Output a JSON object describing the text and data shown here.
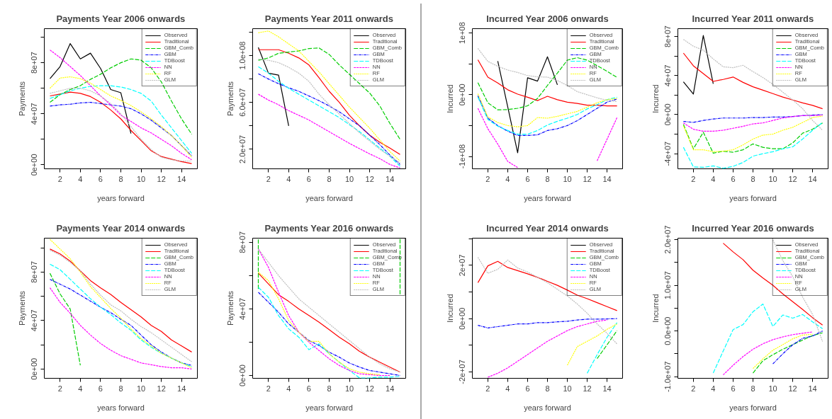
{
  "chart_data": [
    {
      "type": "line",
      "title": "Payments Year 2006 onwards",
      "xlabel": "years forward",
      "ylabel": "Payments",
      "x": [
        1,
        2,
        3,
        4,
        5,
        6,
        7,
        8,
        9,
        10,
        11,
        12,
        13,
        14,
        15
      ],
      "xlim": [
        0.44,
        15.56
      ],
      "xticks": [
        2,
        4,
        6,
        8,
        10,
        12,
        14
      ],
      "ylim": [
        -3100000.0,
        106700000.0
      ],
      "yticks": [
        {
          "value": 0,
          "label": "0e+00"
        },
        {
          "value": 20000000.0,
          "label": null
        },
        {
          "value": 40000000.0,
          "label": "4e+07"
        },
        {
          "value": 60000000.0,
          "label": null
        },
        {
          "value": 80000000.0,
          "label": "8e+07"
        },
        {
          "value": 100000000.0,
          "label": null
        }
      ],
      "legend": "top right",
      "series": [
        {
          "name": "Observed",
          "color": "#000000",
          "line_style": "solid",
          "values": [
            67500000.0,
            77000000.0,
            95000000.0,
            83000000.0,
            87500000.0,
            75500000.0,
            59000000.0,
            56500000.0,
            24500000.0,
            null,
            null,
            null,
            null,
            null,
            null
          ]
        },
        {
          "name": "Traditional",
          "color": "#ff0000",
          "line_style": "solid",
          "values": [
            54000000.0,
            55500000.0,
            57000000.0,
            56000000.0,
            53500000.0,
            49000000.0,
            43000000.0,
            36000000.0,
            27000000.0,
            19000000.0,
            11000000.0,
            6500000.0,
            4500000.0,
            2500000.0,
            1000000.0
          ]
        },
        {
          "name": "GBM_Comb",
          "color": "#00cd00",
          "line_style": "longdash",
          "values": [
            49000000.0,
            55000000.0,
            59000000.0,
            62000000.0,
            67000000.0,
            71000000.0,
            76000000.0,
            80000000.0,
            83000000.0,
            82000000.0,
            76000000.0,
            65000000.0,
            50000000.0,
            36000000.0,
            24000000.0
          ]
        },
        {
          "name": "GBM",
          "color": "#0000ff",
          "line_style": "dashdot",
          "values": [
            46000000.0,
            47000000.0,
            47500000.0,
            48500000.0,
            49000000.0,
            48000000.0,
            47000000.0,
            46000000.0,
            44000000.0,
            40000000.0,
            35000000.0,
            29000000.0,
            23000000.0,
            15000000.0,
            7000000.0
          ]
        },
        {
          "name": "TDBoost",
          "color": "#00ffff",
          "line_style": "longdash",
          "values": [
            52000000.0,
            55000000.0,
            58000000.0,
            60000000.0,
            61500000.0,
            62000000.0,
            62000000.0,
            61000000.0,
            59000000.0,
            56000000.0,
            50000000.0,
            39000000.0,
            29000000.0,
            19000000.0,
            9000000.0
          ]
        },
        {
          "name": "NN",
          "color": "#ff00ff",
          "line_style": "dashed",
          "values": [
            90000000.0,
            84000000.0,
            77000000.0,
            70000000.0,
            62000000.0,
            54000000.0,
            47000000.0,
            39000000.0,
            34000000.0,
            29000000.0,
            25000000.0,
            20000000.0,
            15000000.0,
            9000000.0,
            4000000.0
          ]
        },
        {
          "name": "RF",
          "color": "#ffff00",
          "line_style": "dotted",
          "values": [
            60000000.0,
            68000000.0,
            69000000.0,
            67500000.0,
            64000000.0,
            59000000.0,
            54000000.0,
            50500000.0,
            46500000.0,
            41500000.0,
            36000000.0,
            30000000.0,
            23000000.0,
            15000000.0,
            6000000.0
          ]
        },
        {
          "name": "GLM",
          "color": "#bebebe",
          "line_style": "dotted",
          "values": [
            56000000.0,
            58000000.0,
            60000000.0,
            60000000.0,
            58000000.0,
            54000000.0,
            48000000.0,
            40000000.0,
            30000000.0,
            20000000.0,
            12000000.0,
            6000000.0,
            4000000.0,
            3000000.0,
            3000000.0
          ]
        }
      ]
    },
    {
      "type": "line",
      "title": "Payments Year 2011 onwards",
      "xlabel": "years forward",
      "ylabel": "Payments",
      "x": [
        1,
        2,
        3,
        4,
        5,
        6,
        7,
        8,
        9,
        10,
        11,
        12,
        13,
        14,
        15
      ],
      "xlim": [
        0.44,
        15.56
      ],
      "xticks": [
        2,
        4,
        6,
        8,
        10,
        12,
        14
      ],
      "ylim": [
        3300000.0,
        123000000.0
      ],
      "yticks": [
        {
          "value": 20000000.0,
          "label": "2.0e+07"
        },
        {
          "value": 40000000.0,
          "label": null
        },
        {
          "value": 60000000.0,
          "label": "6.0e+07"
        },
        {
          "value": 80000000.0,
          "label": null
        },
        {
          "value": 100000000.0,
          "label": "1.0e+08"
        },
        {
          "value": 120000000.0,
          "label": null
        }
      ],
      "legend": "top right",
      "series": [
        {
          "name": "Observed",
          "color": "#000000",
          "line_style": "solid",
          "values": [
            107000000.0,
            85000000.0,
            83300000.0,
            40000000.0,
            null,
            null,
            null,
            null,
            null,
            null,
            null,
            null,
            null,
            null,
            null
          ]
        },
        {
          "name": "Traditional",
          "color": "#ff0000",
          "line_style": "solid",
          "values": [
            105000000.0,
            105000000.0,
            105000000.0,
            102000000.0,
            98000000.0,
            92000000.0,
            81000000.0,
            69500000.0,
            60000000.0,
            49000000.0,
            40000000.0,
            32000000.0,
            26000000.0,
            21000000.0,
            15500000.0
          ]
        },
        {
          "name": "GBM_Comb",
          "color": "#00cd00",
          "line_style": "longdash",
          "values": [
            96000000.0,
            98000000.0,
            102000000.0,
            103000000.0,
            104000000.0,
            106000000.0,
            106500000.0,
            101000000.0,
            92000000.0,
            84000000.0,
            76000000.0,
            68000000.0,
            57000000.0,
            42000000.0,
            28500000.0
          ]
        },
        {
          "name": "GBM",
          "color": "#0000ff",
          "line_style": "dashdot",
          "values": [
            84500000.0,
            80000000.0,
            76000000.0,
            72500000.0,
            69500000.0,
            65500000.0,
            61500000.0,
            57000000.0,
            52000000.0,
            46000000.0,
            40000000.0,
            32000000.0,
            24000000.0,
            15000000.0,
            7000000.0
          ]
        },
        {
          "name": "TDBoost",
          "color": "#00ffff",
          "line_style": "longdash",
          "values": [
            90500000.0,
            85000000.0,
            78000000.0,
            72000000.0,
            67000000.0,
            62000000.0,
            57000000.0,
            52000000.0,
            47000000.0,
            41000000.0,
            35000000.0,
            28000000.0,
            21000000.0,
            14000000.0,
            5500000.0
          ]
        },
        {
          "name": "NN",
          "color": "#ff00ff",
          "line_style": "dashed",
          "values": [
            67000000.0,
            62000000.0,
            58000000.0,
            53000000.0,
            49000000.0,
            45000000.0,
            40000000.0,
            35000000.0,
            30000000.0,
            25000000.0,
            20500000.0,
            16000000.0,
            12000000.0,
            7000000.0,
            4000000.0
          ]
        },
        {
          "name": "RF",
          "color": "#ffff00",
          "line_style": "dotted",
          "values": [
            119500000.0,
            121000000.0,
            116000000.0,
            110000000.0,
            104000000.0,
            95000000.0,
            86000000.0,
            76000000.0,
            66000000.0,
            56000000.0,
            47000000.0,
            38000000.0,
            28000000.0,
            18000000.0,
            10000000.0
          ]
        },
        {
          "name": "GLM",
          "color": "#bebebe",
          "line_style": "dotted",
          "values": [
            97000000.0,
            96000000.0,
            94000000.0,
            90000000.0,
            85000000.0,
            78000000.0,
            67000000.0,
            58000000.0,
            50000000.0,
            42000000.0,
            34000000.0,
            27000000.0,
            20000000.0,
            14000000.0,
            8500000.0
          ]
        }
      ]
    },
    {
      "type": "line",
      "title": "Incurred Year 2006 onwards",
      "xlabel": "years forward",
      "ylabel": "Incurred",
      "x": [
        1,
        2,
        3,
        4,
        5,
        6,
        7,
        8,
        9,
        10,
        11,
        12,
        13,
        14,
        15
      ],
      "xlim": [
        0.44,
        15.56
      ],
      "xticks": [
        2,
        4,
        6,
        8,
        10,
        12,
        14
      ],
      "ylim": [
        -120000000.0,
        107000000.0
      ],
      "yticks": [
        {
          "value": -100000000.0,
          "label": "-1e+08"
        },
        {
          "value": -50000000.0,
          "label": null
        },
        {
          "value": 0,
          "label": "0e+00"
        },
        {
          "value": 50000000.0,
          "label": null
        },
        {
          "value": 100000000.0,
          "label": "1e+08"
        }
      ],
      "legend": "top right",
      "series": [
        {
          "name": "Observed",
          "color": "#000000",
          "line_style": "solid",
          "values": [
            null,
            null,
            54500000.0,
            -19500000.0,
            -94000000.0,
            27500000.0,
            22000000.0,
            61500000.0,
            16000000.0,
            null,
            null,
            null,
            null,
            null,
            null
          ]
        },
        {
          "name": "Traditional",
          "color": "#ff0000",
          "line_style": "solid",
          "values": [
            56500000.0,
            28500000.0,
            19000000.0,
            8000000.0,
            1000000.0,
            -4000000.0,
            -9500000.0,
            -2500000.0,
            -8000000.0,
            -12000000.0,
            -14000000.0,
            -17000000.0,
            -17000000.0,
            -18000000.0,
            -18000000.0
          ]
        },
        {
          "name": "GBM_Comb",
          "color": "#00cd00",
          "line_style": "longdash",
          "values": [
            19500000.0,
            -13000000.0,
            -24500000.0,
            -24000000.0,
            -22000000.0,
            -18000000.0,
            -6000000.0,
            15000000.0,
            35000000.0,
            56000000.0,
            60000000.0,
            56000000.0,
            47000000.0,
            38000000.0,
            28000000.0
          ]
        },
        {
          "name": "GBM",
          "color": "#0000ff",
          "line_style": "dashdot",
          "values": [
            -1500000.0,
            -38000000.0,
            -50000000.0,
            -59000000.0,
            -66000000.0,
            -66000000.0,
            -65000000.0,
            -58000000.0,
            -55000000.0,
            -50000000.0,
            -42000000.0,
            -32000000.0,
            -22000000.0,
            -12000000.0,
            -7000000.0
          ]
        },
        {
          "name": "TDBoost",
          "color": "#00ffff",
          "line_style": "longdash",
          "values": [
            -4000000.0,
            -40000000.0,
            -51000000.0,
            -58000000.0,
            -64000000.0,
            -64000000.0,
            -58000000.0,
            -49000000.0,
            -43000000.0,
            -38000000.0,
            -32000000.0,
            -23000000.0,
            -16000000.0,
            -8000000.0,
            -4000000.0
          ]
        },
        {
          "name": "NN",
          "color": "#ff00ff",
          "line_style": "dashed",
          "values": [
            -22000000.0,
            -55000000.0,
            -80000000.0,
            -108000000.0,
            -118000000.0,
            null,
            null,
            null,
            null,
            null,
            null,
            null,
            -107000000.0,
            -72000000.0,
            -37000000.0
          ]
        },
        {
          "name": "RF",
          "color": "#ffff00",
          "line_style": "dotted",
          "values": [
            1500000.0,
            -36000000.0,
            -45000000.0,
            -50000000.0,
            -52000000.0,
            -50000000.0,
            -37000000.0,
            -38000000.0,
            -35000000.0,
            -31000000.0,
            -27000000.0,
            -20000000.0,
            -13000000.0,
            -8000000.0,
            -6000000.0
          ]
        },
        {
          "name": "GLM",
          "color": "#bebebe",
          "line_style": "dotted",
          "values": [
            75000000.0,
            54000000.0,
            46000000.0,
            40000000.0,
            36000000.0,
            31000000.0,
            29000000.0,
            28500000.0,
            23000000.0,
            15000000.0,
            5000000.0,
            0,
            -5000000.0,
            -9000000.0,
            -11000000.0
          ]
        }
      ]
    },
    {
      "type": "line",
      "title": "Incurred Year 2011 onwards",
      "xlabel": "years forward",
      "ylabel": "Incurred",
      "x": [
        1,
        2,
        3,
        4,
        5,
        6,
        7,
        8,
        9,
        10,
        11,
        12,
        13,
        14,
        15
      ],
      "xlim": [
        0.44,
        15.56
      ],
      "xticks": [
        2,
        4,
        6,
        8,
        10,
        12,
        14
      ],
      "ylim": [
        -55500000.0,
        88000000.0
      ],
      "yticks": [
        {
          "value": -40000000.0,
          "label": "-4e+07"
        },
        {
          "value": -20000000.0,
          "label": null
        },
        {
          "value": 0,
          "label": "0e+00"
        },
        {
          "value": 20000000.0,
          "label": null
        },
        {
          "value": 40000000.0,
          "label": "4e+07"
        },
        {
          "value": 60000000.0,
          "label": null
        },
        {
          "value": 80000000.0,
          "label": "8e+07"
        }
      ],
      "legend": "top right",
      "series": [
        {
          "name": "Observed",
          "color": "#000000",
          "line_style": "solid",
          "values": [
            33500000.0,
            21000000.0,
            81000000.0,
            31500000.0,
            null,
            null,
            null,
            null,
            null,
            null,
            null,
            null,
            null,
            null,
            null
          ]
        },
        {
          "name": "Traditional",
          "color": "#ff0000",
          "line_style": "solid",
          "values": [
            63000000.0,
            50000000.0,
            42000000.0,
            34000000.0,
            36000000.0,
            38500000.0,
            33000000.0,
            28500000.0,
            25000000.0,
            21500000.0,
            18000000.0,
            15000000.0,
            12000000.0,
            9500000.0,
            6000000.0
          ]
        },
        {
          "name": "GBM_Comb",
          "color": "#00cd00",
          "line_style": "longdash",
          "values": [
            -10000000.0,
            -35000000.0,
            -18000000.0,
            -39500000.0,
            -37500000.0,
            -38500000.0,
            -36000000.0,
            -30000000.0,
            -33500000.0,
            -35000000.0,
            -35000000.0,
            -29000000.0,
            -19000000.0,
            -15000000.0,
            -8500000.0
          ]
        },
        {
          "name": "GBM",
          "color": "#0000ff",
          "line_style": "dashdot",
          "values": [
            -7000000.0,
            -8000000.0,
            -6000000.0,
            -4500000.0,
            -3500000.0,
            -3500000.0,
            -3500000.0,
            -3000000.0,
            -3000000.0,
            -2500000.0,
            -2500000.0,
            -2000000.0,
            -1000000.0,
            -500000.0,
            0
          ]
        },
        {
          "name": "TDBoost",
          "color": "#00ffff",
          "line_style": "longdash",
          "values": [
            -33500000.0,
            -53500000.0,
            -54000000.0,
            -52500000.0,
            -55000000.0,
            -53000000.0,
            -49000000.0,
            -42500000.0,
            -40000000.0,
            -38000000.0,
            -35000000.0,
            -33000000.0,
            -25000000.0,
            -16000000.0,
            -8000000.0
          ]
        },
        {
          "name": "NN",
          "color": "#ff00ff",
          "line_style": "dashed",
          "values": [
            -8500000.0,
            -15000000.0,
            -17000000.0,
            -17000000.0,
            -16000000.0,
            -14000000.0,
            -12000000.0,
            -9500000.0,
            -8500000.0,
            -6000000.0,
            -3500000.0,
            -2000000.0,
            -1000000.0,
            -1000000.0,
            -500000.0
          ]
        },
        {
          "name": "RF",
          "color": "#ffff00",
          "line_style": "dotted",
          "values": [
            -11500000.0,
            -36000000.0,
            -36000000.0,
            -38000000.0,
            -37500000.0,
            -36000000.0,
            -31000000.0,
            -25000000.0,
            -21000000.0,
            -20000000.0,
            -16000000.0,
            -13000000.0,
            -8000000.0,
            -3000000.0,
            -1500000.0
          ]
        },
        {
          "name": "GLM",
          "color": "#bebebe",
          "line_style": "dotted",
          "values": [
            77000000.0,
            70000000.0,
            66000000.0,
            57000000.0,
            49000000.0,
            48000000.0,
            50500000.0,
            44000000.0,
            38000000.0,
            31000000.0,
            23000000.0,
            15000000.0,
            6000000.0,
            -6000000.0,
            -16000000.0
          ]
        }
      ]
    },
    {
      "type": "line",
      "title": "Payments Year 2014 onwards",
      "xlabel": "years forward",
      "ylabel": "Payments",
      "x": [
        1,
        2,
        3,
        4,
        5,
        6,
        7,
        8,
        9,
        10,
        11,
        12,
        13,
        14,
        15
      ],
      "xlim": [
        0.44,
        15.56
      ],
      "xticks": [
        2,
        4,
        6,
        8,
        10,
        12,
        14
      ],
      "ylim": [
        -7700000.0,
        108000000.0
      ],
      "yticks": [
        {
          "value": 0,
          "label": "0e+00"
        },
        {
          "value": 20000000.0,
          "label": null
        },
        {
          "value": 40000000.0,
          "label": "4e+07"
        },
        {
          "value": 60000000.0,
          "label": null
        },
        {
          "value": 80000000.0,
          "label": "8e+07"
        },
        {
          "value": 100000000.0,
          "label": null
        }
      ],
      "legend": "top right",
      "series": [
        {
          "name": "Observed",
          "color": "#000000",
          "line_style": "solid",
          "values": [
            null,
            null,
            null,
            null,
            null,
            null,
            null,
            null,
            null,
            null,
            null,
            null,
            null,
            null,
            null
          ]
        },
        {
          "name": "Traditional",
          "color": "#ff0000",
          "line_style": "solid",
          "values": [
            99000000.0,
            95000000.0,
            89000000.0,
            81000000.0,
            73000000.0,
            67000000.0,
            61500000.0,
            55000000.0,
            49000000.0,
            43000000.0,
            36000000.0,
            31000000.0,
            24000000.0,
            19000000.0,
            14000000.0
          ]
        },
        {
          "name": "GBM_Comb",
          "color": "#00cd00",
          "line_style": "longdash",
          "values": [
            79000000.0,
            62000000.0,
            49500000.0,
            3000000.0,
            null,
            null,
            null,
            null,
            null,
            null,
            null,
            null,
            null,
            null,
            null
          ]
        },
        {
          "name": "GBM",
          "color": "#0000ff",
          "line_style": "dashdot",
          "values": [
            74000000.0,
            70000000.0,
            66000000.0,
            61000000.0,
            56000000.0,
            51000000.0,
            46500000.0,
            41000000.0,
            36000000.0,
            28000000.0,
            20000000.0,
            14000000.0,
            9000000.0,
            5000000.0,
            3000000.0
          ]
        },
        {
          "name": "TDBoost",
          "color": "#00ffff",
          "line_style": "longdash",
          "values": [
            86500000.0,
            82000000.0,
            74000000.0,
            66000000.0,
            58000000.0,
            51000000.0,
            45000000.0,
            38000000.0,
            32000000.0,
            24000000.0,
            18000000.0,
            13000000.0,
            9000000.0,
            5000000.0,
            2000000.0
          ]
        },
        {
          "name": "NN",
          "color": "#ff00ff",
          "line_style": "dashed",
          "values": [
            67000000.0,
            55000000.0,
            46000000.0,
            36000000.0,
            28000000.0,
            21000000.0,
            15500000.0,
            11000000.0,
            8000000.0,
            5000000.0,
            3500000.0,
            2000000.0,
            1000000.0,
            1000000.0,
            0
          ]
        },
        {
          "name": "RF",
          "color": "#ffff00",
          "line_style": "dotted",
          "values": [
            107000000.0,
            99000000.0,
            91000000.0,
            80000000.0,
            68000000.0,
            59000000.0,
            50000000.0,
            42000000.0,
            33000000.0,
            25000000.0,
            19000000.0,
            13000000.0,
            9000000.0,
            5000000.0,
            1000000.0
          ]
        },
        {
          "name": "GLM",
          "color": "#bebebe",
          "line_style": "dotted",
          "values": [
            98000000.0,
            94000000.0,
            88000000.0,
            81000000.0,
            70000000.0,
            61000000.0,
            53000000.0,
            48000000.0,
            41000000.0,
            35000000.0,
            30000000.0,
            24000000.0,
            18000000.0,
            12000000.0,
            6000000.0
          ]
        }
      ]
    },
    {
      "type": "line",
      "title": "Payments Year 2016 onwards",
      "xlabel": "years forward",
      "ylabel": "Payments",
      "x": [
        1,
        2,
        3,
        4,
        5,
        6,
        7,
        8,
        9,
        10,
        11,
        12,
        13,
        14,
        15
      ],
      "xlim": [
        0.44,
        15.56
      ],
      "xticks": [
        2,
        4,
        6,
        8,
        10,
        12,
        14
      ],
      "ylim": [
        -1700000.0,
        82500000.0
      ],
      "yticks": [
        {
          "value": 0,
          "label": "0e+00"
        },
        {
          "value": 20000000.0,
          "label": null
        },
        {
          "value": 40000000.0,
          "label": "4e+07"
        },
        {
          "value": 60000000.0,
          "label": null
        },
        {
          "value": 80000000.0,
          "label": "8e+07"
        }
      ],
      "legend": "top right",
      "series": [
        {
          "name": "Observed",
          "color": "#000000",
          "line_style": "solid",
          "values": [
            null,
            null,
            null,
            null,
            null,
            null,
            null,
            null,
            null,
            null,
            null,
            null,
            null,
            null,
            null
          ]
        },
        {
          "name": "Traditional",
          "color": "#ff0000",
          "line_style": "solid",
          "values": [
            61500000.0,
            55000000.0,
            48500000.0,
            44500000.0,
            40000000.0,
            36000000.0,
            32000000.0,
            27500000.0,
            23000000.0,
            19000000.0,
            14500000.0,
            11000000.0,
            8000000.0,
            5000000.0,
            2000000.0
          ]
        },
        {
          "name": "GBM_Comb",
          "color": "#00cd00",
          "line_style": "longdash",
          "x": [
            1,
            1,
            8,
            15,
            15
          ],
          "values": [
            52000000.0,
            82000000.0,
            null,
            82000000.0,
            48000000.0
          ]
        },
        {
          "name": "GBM",
          "color": "#0000ff",
          "line_style": "dashdot",
          "values": [
            50000000.0,
            44000000.0,
            38000000.0,
            31000000.0,
            26000000.0,
            21000000.0,
            18000000.0,
            14000000.0,
            11000000.0,
            7500000.0,
            5000000.0,
            3000000.0,
            2000000.0,
            1000000.0,
            0
          ]
        },
        {
          "name": "TDBoost",
          "color": "#00ffff",
          "line_style": "longdash",
          "values": [
            53000000.0,
            47000000.0,
            36000000.0,
            28000000.0,
            23000000.0,
            15500000.0,
            19000000.0,
            13000000.0,
            8000000.0,
            3000000.0,
            -1500000.0,
            -1500000.0,
            -1000000.0,
            -1000000.0,
            -500000.0
          ]
        },
        {
          "name": "NN",
          "color": "#ff00ff",
          "line_style": "dashed",
          "values": [
            76000000.0,
            65000000.0,
            50000000.0,
            36000000.0,
            26000000.0,
            20000000.0,
            15000000.0,
            10000000.0,
            6000000.0,
            3000000.0,
            1000000.0,
            500000.0,
            0,
            0,
            null
          ]
        },
        {
          "name": "RF",
          "color": "#ffff00",
          "line_style": "dotted",
          "values": [
            62000000.0,
            57000000.0,
            46000000.0,
            33000000.0,
            26000000.0,
            20500000.0,
            20500000.0,
            13000000.0,
            8000000.0,
            4000000.0,
            2000000.0,
            1000000.0,
            500000.0,
            null,
            null
          ]
        },
        {
          "name": "GLM",
          "color": "#bebebe",
          "line_style": "dotted",
          "values": [
            76000000.0,
            68000000.0,
            60000000.0,
            53000000.0,
            46000000.0,
            41000000.0,
            36000000.0,
            31000000.0,
            26000000.0,
            21000000.0,
            16000000.0,
            11000000.0,
            7000000.0,
            4000000.0,
            2000000.0
          ]
        }
      ]
    },
    {
      "type": "line",
      "title": "Incurred Year 2014 onwards",
      "xlabel": "years forward",
      "ylabel": "Incurred",
      "x": [
        1,
        2,
        3,
        4,
        5,
        6,
        7,
        8,
        9,
        10,
        11,
        12,
        13,
        14,
        15
      ],
      "xlim": [
        0.44,
        15.56
      ],
      "xticks": [
        2,
        4,
        6,
        8,
        10,
        12,
        14
      ],
      "ylim": [
        -22400000.0,
        30200000.0
      ],
      "yticks": [
        {
          "value": -20000000.0,
          "label": "-2e+07"
        },
        {
          "value": -10000000.0,
          "label": null
        },
        {
          "value": 0,
          "label": "0e+00"
        },
        {
          "value": 10000000.0,
          "label": null
        },
        {
          "value": 20000000.0,
          "label": "2e+07"
        },
        {
          "value": 30000000.0,
          "label": null
        }
      ],
      "legend": "top right",
      "series": [
        {
          "name": "Observed",
          "color": "#000000",
          "line_style": "solid",
          "values": [
            null,
            null,
            null,
            null,
            null,
            null,
            null,
            null,
            null,
            null,
            null,
            null,
            null,
            null,
            null
          ]
        },
        {
          "name": "Traditional",
          "color": "#ff0000",
          "line_style": "solid",
          "values": [
            13500000.0,
            19800000.0,
            21500000.0,
            19200000.0,
            18000000.0,
            16800000.0,
            15500000.0,
            14000000.0,
            12500000.0,
            10700000.0,
            8800000.0,
            7500000.0,
            6000000.0,
            4500000.0,
            3000000.0
          ]
        },
        {
          "name": "GBM_Comb",
          "color": "#00cd00",
          "line_style": "longdash",
          "values": [
            null,
            null,
            null,
            null,
            null,
            null,
            null,
            null,
            null,
            null,
            null,
            null,
            -15000000.0,
            -9800000.0,
            -4500000.0
          ]
        },
        {
          "name": "GBM",
          "color": "#0000ff",
          "line_style": "dashdot",
          "values": [
            -2500000.0,
            -3500000.0,
            -3000000.0,
            -2500000.0,
            -2000000.0,
            -2000000.0,
            -1500000.0,
            -1500000.0,
            -1200000.0,
            -1000000.0,
            -500000.0,
            -200000.0,
            -200000.0,
            -100000.0,
            0
          ]
        },
        {
          "name": "TDBoost",
          "color": "#00ffff",
          "line_style": "longdash",
          "values": [
            null,
            null,
            null,
            null,
            null,
            null,
            null,
            null,
            null,
            null,
            null,
            -20500000.0,
            -13500000.0,
            -7000000.0,
            -1500000.0
          ]
        },
        {
          "name": "NN",
          "color": "#ff00ff",
          "line_style": "dashed",
          "values": [
            null,
            -22000000.0,
            -20500000.0,
            -18500000.0,
            -16000000.0,
            -13500000.0,
            -11000000.0,
            -8500000.0,
            -6500000.0,
            -4500000.0,
            -3000000.0,
            -2000000.0,
            -1000000.0,
            -500000.0,
            null
          ]
        },
        {
          "name": "RF",
          "color": "#ffff00",
          "line_style": "dotted",
          "values": [
            null,
            null,
            null,
            null,
            null,
            null,
            null,
            null,
            null,
            -17500000.0,
            -10500000.0,
            -8500000.0,
            -6500000.0,
            -4000000.0,
            -2000000.0
          ]
        },
        {
          "name": "GLM",
          "color": "#bebebe",
          "line_style": "dotted",
          "values": [
            23000000.0,
            17000000.0,
            18500000.0,
            22000000.0,
            19000000.0,
            17500000.0,
            15500000.0,
            13500000.0,
            11000000.0,
            8500000.0,
            5500000.0,
            2000000.0,
            -2000000.0,
            -5500000.0,
            -9500000.0
          ]
        }
      ]
    },
    {
      "type": "line",
      "title": "Incurred Year 2016 onwards",
      "xlabel": "years forward",
      "ylabel": "Incurred",
      "xlim": [
        0.44,
        15.56
      ],
      "xticks": [
        2,
        4,
        6,
        8,
        10,
        12,
        14
      ],
      "ylim": [
        -10350000.0,
        20300000.0
      ],
      "yticks": [
        {
          "value": -10000000.0,
          "label": "-1.0e+07"
        },
        {
          "value": -5000000.0,
          "label": null
        },
        {
          "value": 0,
          "label": "0.0e+00"
        },
        {
          "value": 5000000.0,
          "label": null
        },
        {
          "value": 10000000.0,
          "label": "1.0e+07"
        },
        {
          "value": 15000000.0,
          "label": null
        },
        {
          "value": 20000000.0,
          "label": "2.0e+07"
        }
      ],
      "legend": "top right",
      "series": [
        {
          "name": "Observed",
          "color": "#000000",
          "line_style": "solid"
        },
        {
          "name": "Traditional",
          "color": "#ff0000",
          "line_style": "solid",
          "x": [
            5,
            6,
            7,
            8,
            9,
            10,
            11,
            12,
            13,
            14,
            15
          ],
          "values": [
            19200000.0,
            17300000.0,
            15600000.0,
            13300000.0,
            11600000.0,
            10000000.0,
            8100000.0,
            6400000.0,
            4700000.0,
            2900000.0,
            1300000.0
          ]
        },
        {
          "name": "GBM_Comb",
          "color": "#00cd00",
          "line_style": "longdash",
          "x": [
            8,
            9,
            10,
            11,
            12,
            13,
            14,
            15
          ],
          "values": [
            -9200000.0,
            -6500000.0,
            -5200000.0,
            -4000000.0,
            -3000000.0,
            -2000000.0,
            -1000000.0,
            -400000.0
          ]
        },
        {
          "name": "GBM",
          "color": "#0000ff",
          "line_style": "dashdot",
          "x": [
            10,
            11,
            12,
            13,
            14,
            15
          ],
          "values": [
            -7200000.0,
            -5000000.0,
            -3000000.0,
            -1600000.0,
            -1100000.0,
            0
          ]
        },
        {
          "name": "TDBoost",
          "color": "#00ffff",
          "line_style": "longdash",
          "x": [
            4,
            5,
            6,
            7,
            8,
            9,
            10,
            11,
            12,
            13,
            14,
            15
          ],
          "values": [
            -9200000.0,
            -4400000.0,
            300000.0,
            1400000.0,
            4200000.0,
            5900000.0,
            1000000.0,
            3500000.0,
            2800000.0,
            3600000.0,
            2000000.0,
            500000.0
          ]
        },
        {
          "name": "NN",
          "color": "#ff00ff",
          "line_style": "dashed",
          "x": [
            5,
            6,
            7,
            8,
            9,
            10,
            11,
            12,
            13,
            14
          ],
          "values": [
            -9600000.0,
            -7500000.0,
            -5600000.0,
            -4000000.0,
            -2800000.0,
            -1900000.0,
            -1300000.0,
            -800000.0,
            -500000.0,
            -200000.0
          ]
        },
        {
          "name": "RF",
          "color": "#ffff00",
          "line_style": "dotted",
          "x": [
            8,
            9,
            10,
            11,
            12,
            13,
            14
          ],
          "values": [
            -8200000.0,
            -6100000.0,
            -4200000.0,
            -3000000.0,
            -1700000.0,
            -900000.0,
            -700000.0
          ]
        },
        {
          "name": "GLM",
          "color": "#bebebe",
          "line_style": "dotted",
          "x": [
            10,
            11,
            12,
            13,
            14,
            15
          ],
          "values": [
            19900000.0,
            15400000.0,
            11900000.0,
            7400000.0,
            3600000.0,
            -2300000.0
          ]
        }
      ]
    }
  ]
}
